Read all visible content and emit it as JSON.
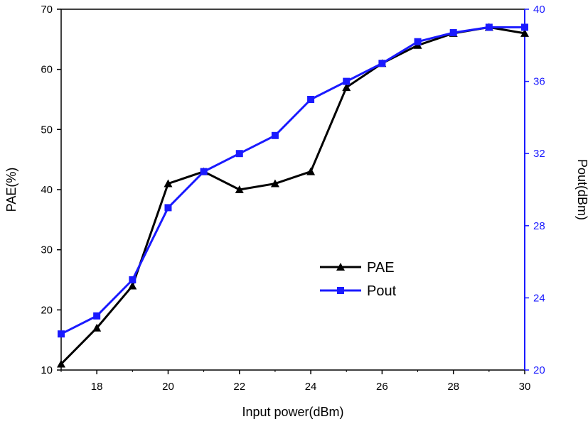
{
  "chart_data": {
    "type": "line",
    "title": "",
    "xlabel": "Input power(dBm)",
    "ylabel_left": "PAE(%)",
    "ylabel_right": "Pout(dBm)",
    "xlim": [
      17,
      30
    ],
    "ylim_left": [
      10,
      70
    ],
    "ylim_right": [
      20,
      40
    ],
    "x_ticks": [
      18,
      20,
      22,
      24,
      26,
      28,
      30
    ],
    "y_left_ticks": [
      10,
      20,
      30,
      40,
      50,
      60,
      70
    ],
    "y_right_ticks": [
      20,
      24,
      28,
      32,
      36,
      40
    ],
    "grid": false,
    "legend_position": "center-right",
    "x": [
      17,
      18,
      19,
      20,
      21,
      22,
      23,
      24,
      25,
      26,
      27,
      28,
      29,
      30
    ],
    "series": [
      {
        "name": "PAE",
        "axis": "left",
        "marker": "triangle",
        "color": "#000000",
        "values": [
          11,
          17,
          24,
          41,
          43,
          40,
          41,
          43,
          57,
          61,
          64,
          66,
          67,
          66
        ]
      },
      {
        "name": "Pout",
        "axis": "right",
        "marker": "square",
        "color": "#1a1aff",
        "values": [
          22,
          23,
          25,
          29,
          31,
          32,
          33,
          35,
          36,
          37,
          38.2,
          38.7,
          39,
          39
        ]
      }
    ],
    "right_axis_color": "#1a1aff"
  }
}
